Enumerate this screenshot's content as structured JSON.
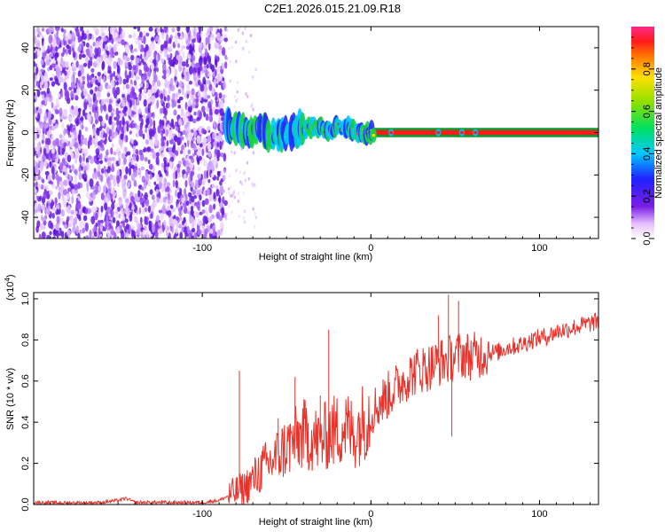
{
  "title": "C2E1.2026.015.21.09.R18",
  "colors": {
    "snr_line": "#e8322a",
    "spectrogram_noise": "#6a1fe0",
    "spectrogram_signal_core": "#ff1a1a",
    "spectrogram_signal_edge": "#19d046"
  },
  "chart_data": [
    {
      "type": "heatmap",
      "name": "spectrogram",
      "xlabel": "Height of straight line (km)",
      "ylabel": "Frequency (Hz)",
      "xlim": [
        -200,
        135
      ],
      "ylim": [
        -50,
        50
      ],
      "xticks": [
        -100,
        0,
        100
      ],
      "xtick_labels": [
        "-100",
        "0",
        "100"
      ],
      "yticks": [
        -40,
        -20,
        0,
        20,
        40
      ],
      "ytick_labels": [
        "-40",
        "-20",
        "0",
        "20",
        "40"
      ],
      "noise_region_x": [
        -200,
        -86
      ],
      "signal_track": {
        "x": [
          -86,
          -80,
          -75,
          -70,
          -65,
          -60,
          -55,
          -50,
          -45,
          -40,
          -35,
          -30,
          -25,
          -20,
          -15,
          -10,
          -5,
          0,
          10,
          40,
          55,
          135
        ],
        "frequency_hz": [
          2,
          3,
          1,
          0,
          2,
          -2,
          0,
          -1,
          1,
          2,
          3,
          2,
          1,
          3,
          2,
          1,
          0,
          0,
          0,
          0,
          0,
          0
        ]
      },
      "colorbar": {
        "label": "Normalized spectral amplitude",
        "range": [
          0,
          1
        ],
        "ticks": [
          0.0,
          0.2,
          0.4,
          0.6,
          0.8
        ],
        "tick_labels": [
          "0.0",
          "0.2",
          "0.4",
          "0.6",
          "0.8"
        ]
      },
      "grid": false
    },
    {
      "type": "line",
      "name": "snr",
      "xlabel": "Height of straight line (km)",
      "ylabel": "SNR (10 * v/v)",
      "scale_label": "(x10",
      "scale_exponent": "4",
      "xlim": [
        -200,
        135
      ],
      "ylim": [
        0,
        1.03
      ],
      "xticks": [
        -100,
        0,
        100
      ],
      "xtick_labels": [
        "-100",
        "0",
        "100"
      ],
      "yticks": [
        0.0,
        0.2,
        0.4,
        0.6,
        0.8,
        1.0
      ],
      "ytick_labels": [
        "0.0",
        "0.2",
        "0.4",
        "0.6",
        "0.8",
        "1.0"
      ],
      "grid": false,
      "series": [
        {
          "x": [
            -200,
            -180,
            -160,
            -150,
            -145,
            -140,
            -120,
            -100,
            -90,
            -85,
            -80,
            -75,
            -70,
            -65,
            -60,
            -55,
            -50,
            -45,
            -40,
            -35,
            -30,
            -25,
            -20,
            -15,
            -10,
            -5,
            0,
            5,
            10,
            15,
            20,
            25,
            30,
            35,
            40,
            45,
            50,
            55,
            60,
            65,
            70,
            75,
            80,
            85,
            90,
            95,
            100,
            105,
            110,
            115,
            120,
            125,
            130,
            135
          ],
          "y": [
            0.01,
            0.008,
            0.01,
            0.02,
            0.03,
            0.01,
            0.01,
            0.01,
            0.02,
            0.04,
            0.06,
            0.08,
            0.12,
            0.17,
            0.2,
            0.24,
            0.28,
            0.31,
            0.34,
            0.33,
            0.3,
            0.35,
            0.36,
            0.38,
            0.34,
            0.4,
            0.45,
            0.49,
            0.53,
            0.57,
            0.61,
            0.64,
            0.66,
            0.67,
            0.69,
            0.7,
            0.72,
            0.73,
            0.72,
            0.73,
            0.74,
            0.74,
            0.76,
            0.77,
            0.78,
            0.8,
            0.81,
            0.82,
            0.84,
            0.85,
            0.86,
            0.87,
            0.88,
            0.89
          ]
        }
      ],
      "annotations": [
        {
          "x": -78,
          "y": 0.65
        },
        {
          "x": -55,
          "y": 0.42
        },
        {
          "x": -45,
          "y": 0.62
        },
        {
          "x": -30,
          "y": 0.53
        },
        {
          "x": -25,
          "y": 0.85
        },
        {
          "x": 40,
          "y": 0.92
        },
        {
          "x": 46,
          "y": 1.02
        },
        {
          "x": 48,
          "y": 0.33
        },
        {
          "x": 52,
          "y": 0.99
        }
      ]
    }
  ]
}
